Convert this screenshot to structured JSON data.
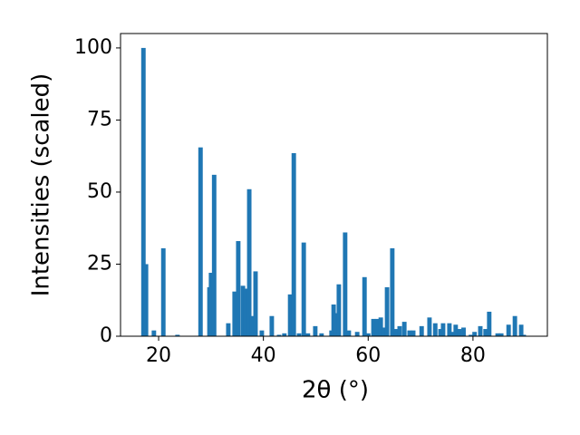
{
  "chart_data": {
    "type": "bar",
    "xlabel": "2θ (°)",
    "ylabel": "Intensities (scaled)",
    "x": [
      17.1,
      17.6,
      19.1,
      20.9,
      23.6,
      28.0,
      29.7,
      30.0,
      30.6,
      33.3,
      34.5,
      35.2,
      36.1,
      36.6,
      37.3,
      37.8,
      38.5,
      39.7,
      41.6,
      43.0,
      44.0,
      45.1,
      45.8,
      46.8,
      47.7,
      48.5,
      49.9,
      51.1,
      53.0,
      53.4,
      53.9,
      54.4,
      55.6,
      56.3,
      57.9,
      59.3,
      60.0,
      61.0,
      61.7,
      62.4,
      63.1,
      63.6,
      64.6,
      65.3,
      66.0,
      66.9,
      67.9,
      68.6,
      70.2,
      71.7,
      72.8,
      73.8,
      74.3,
      75.5,
      76.2,
      76.7,
      77.4,
      78.2,
      79.6,
      80.3,
      81.4,
      82.4,
      83.1,
      84.7,
      85.4,
      86.8,
      88.0,
      89.2,
      89.7
    ],
    "values": [
      100,
      25,
      2,
      30.5,
      0.5,
      65.5,
      17,
      22,
      56,
      4.5,
      15.5,
      33,
      17.5,
      16.5,
      51,
      7,
      22.5,
      2,
      7,
      0.5,
      1,
      14.5,
      63.5,
      1,
      32.5,
      1,
      3.5,
      1,
      2,
      11,
      8,
      18,
      36,
      2,
      1.5,
      20.5,
      1,
      6,
      6,
      6.5,
      3,
      17,
      30.5,
      2.5,
      3.5,
      5,
      2,
      2,
      3.5,
      6.5,
      4.5,
      2.5,
      4.5,
      4.5,
      1.5,
      4,
      2.5,
      3,
      0.5,
      1.5,
      3.5,
      2.5,
      8.5,
      1,
      1,
      4,
      7,
      4,
      0.5
    ],
    "color": "#1f77b4",
    "xlim": [
      12.73,
      94.2
    ],
    "xticks": [
      20,
      40,
      60,
      80
    ],
    "ylim": [
      0,
      105
    ],
    "yticks": [
      0,
      25,
      50,
      75,
      100
    ]
  }
}
